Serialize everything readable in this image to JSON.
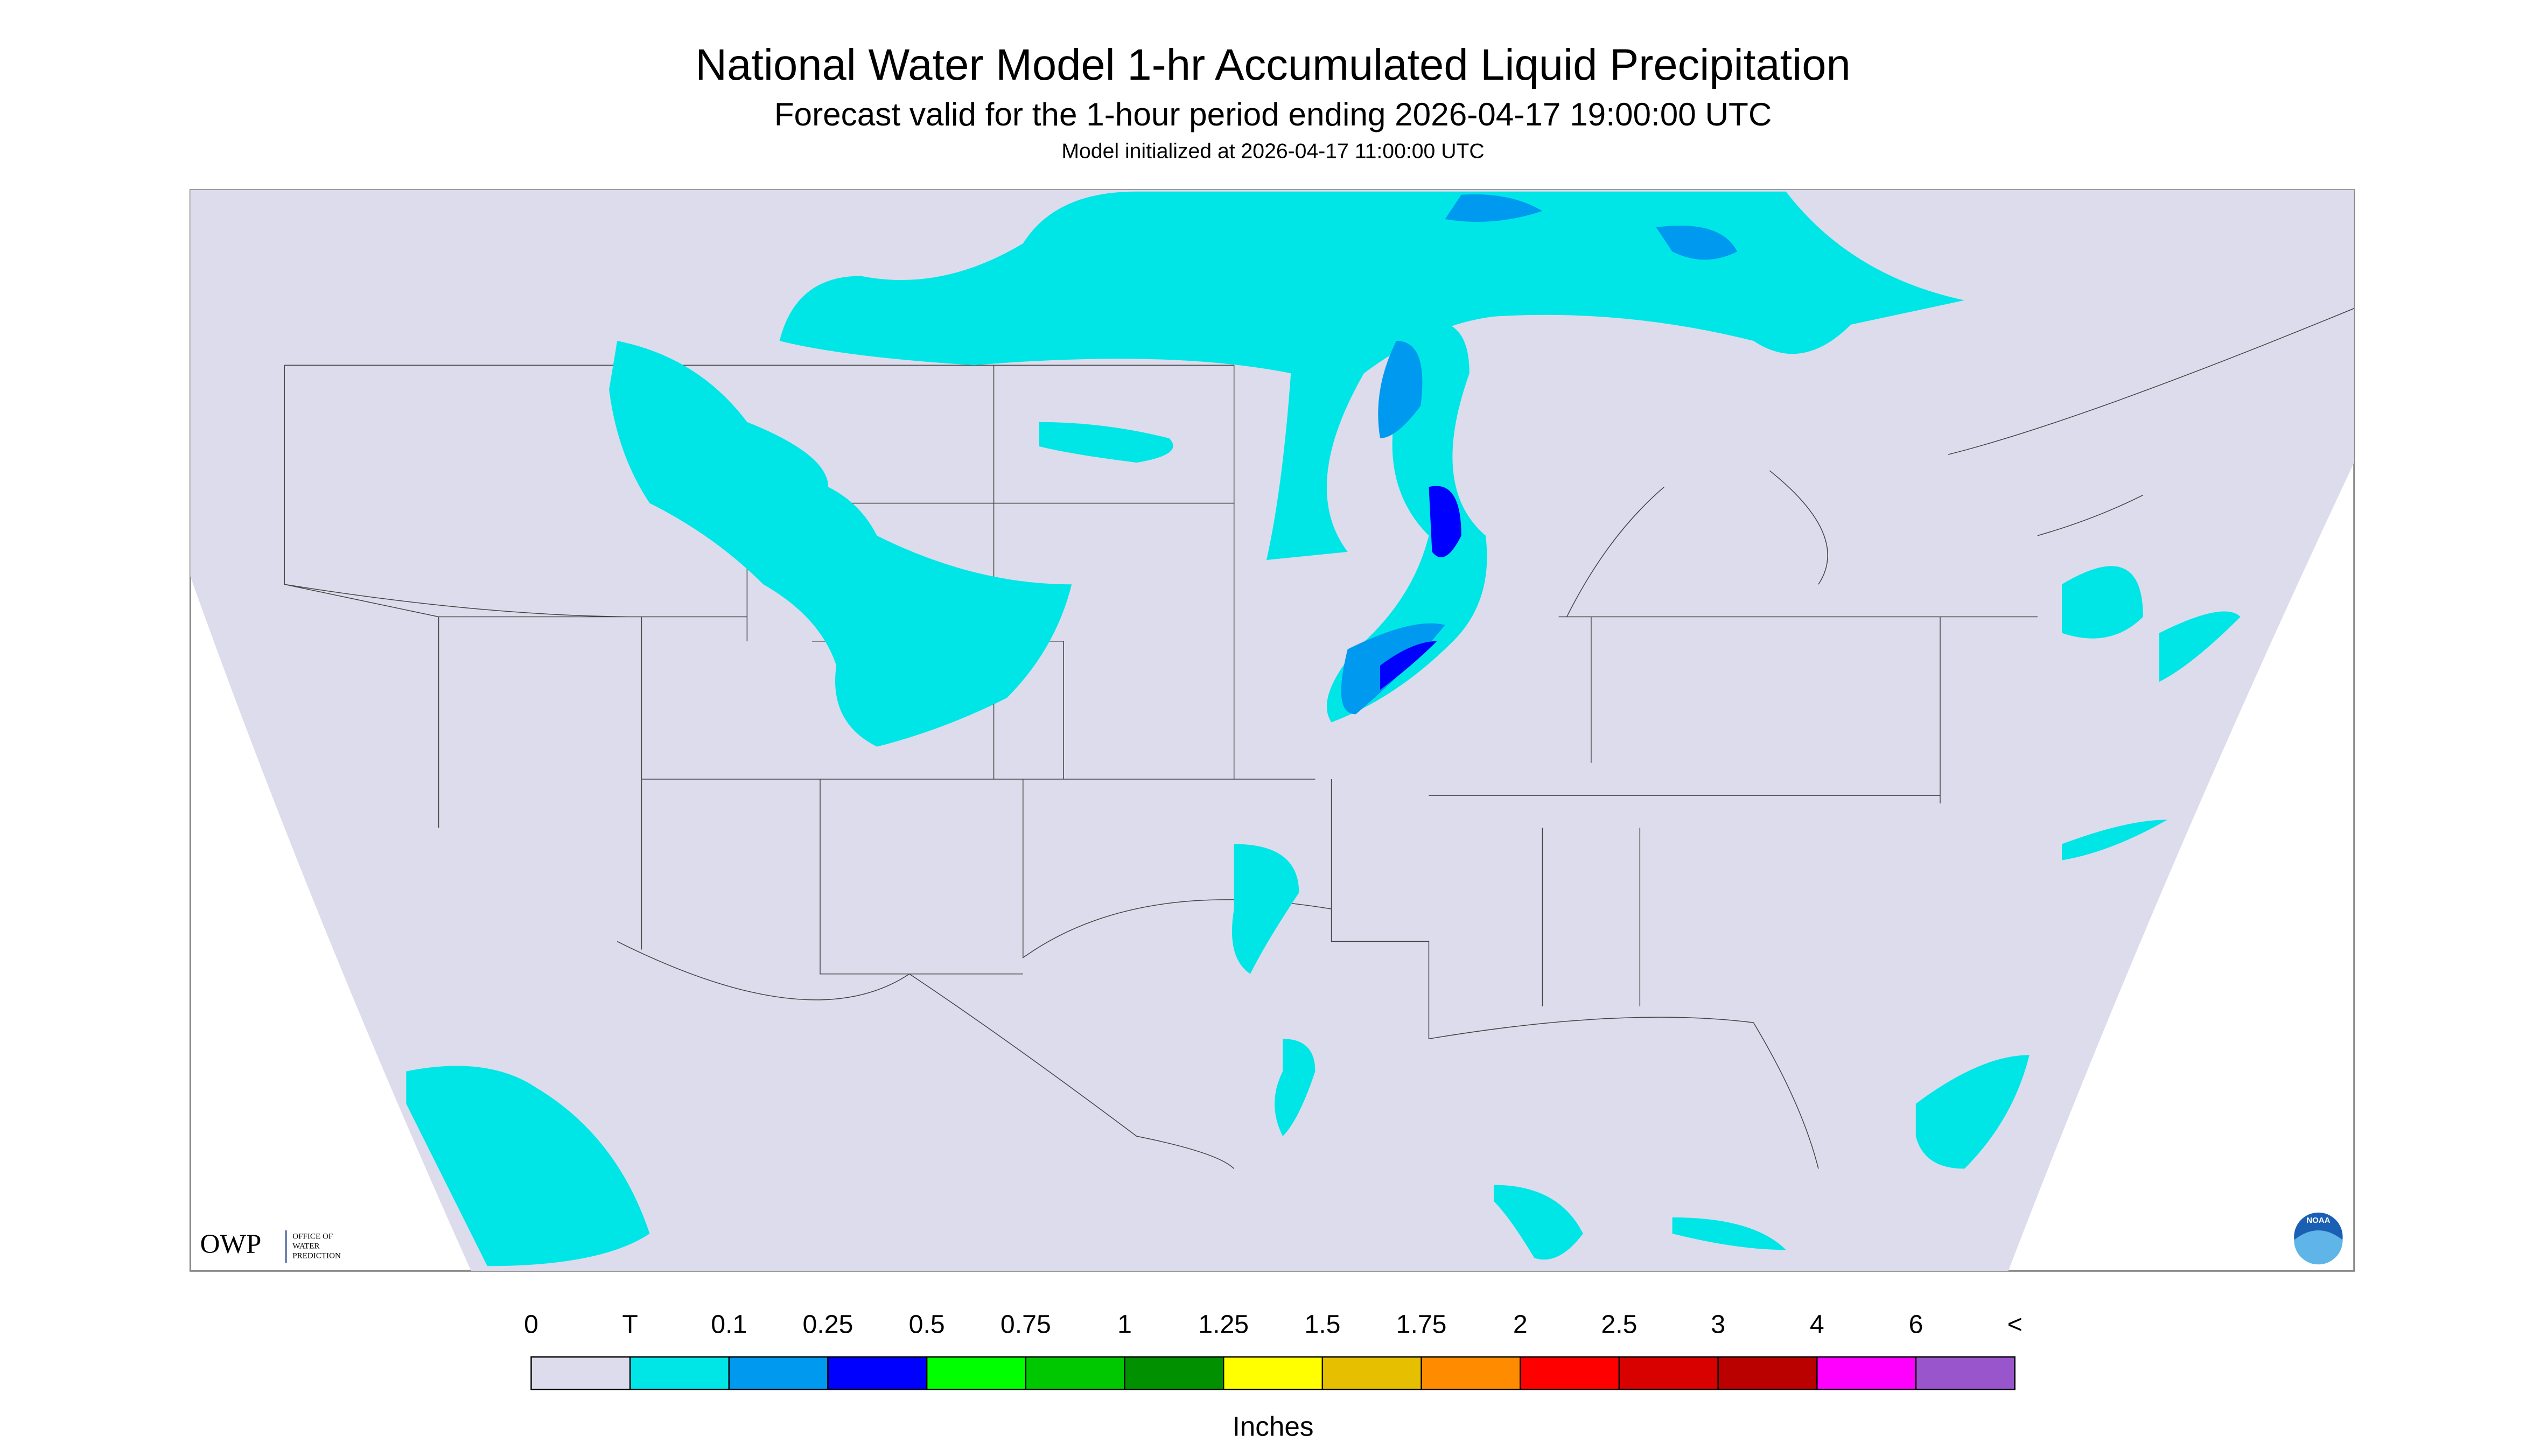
{
  "header": {
    "title": "National Water Model 1-hr Accumulated Liquid Precipitation",
    "subtitle": "Forecast valid for the 1-hour period ending 2026-04-17 19:00:00 UTC",
    "initialized": "Model initialized at 2026-04-17 11:00:00 UTC"
  },
  "legend": {
    "labels": [
      "0",
      "T",
      "0.1",
      "0.25",
      "0.5",
      "0.75",
      "1",
      "1.25",
      "1.5",
      "1.75",
      "2",
      "2.5",
      "3",
      "4",
      "6",
      "<"
    ],
    "colors": [
      "#dcdcec",
      "#00e6e6",
      "#0099f0",
      "#0000ff",
      "#00ff00",
      "#00c800",
      "#009000",
      "#ffff00",
      "#e6c000",
      "#ff8c00",
      "#ff0000",
      "#d90000",
      "#bb0000",
      "#ff00ff",
      "#9955cc"
    ],
    "unit": "Inches"
  },
  "logos": {
    "owp": "OWP",
    "owp_line1": "OFFICE OF",
    "owp_line2": "WATER",
    "owp_line3": "PREDICTION",
    "noaa": "NOAA"
  }
}
